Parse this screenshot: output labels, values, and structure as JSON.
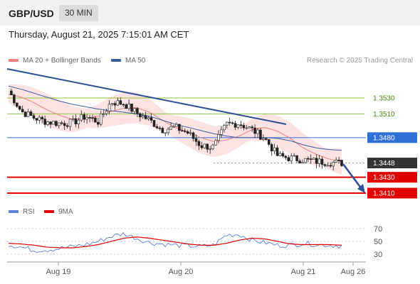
{
  "header": {
    "pair": "GBP/USD",
    "timeframe": "30 MIN"
  },
  "datetime": "Thursday, August 21, 2025 7:15:01 AM CET",
  "legend": {
    "ma20": "MA 20 + Bollinger Bands",
    "ma50": "MA 50",
    "copyright": "Research © 2025 Trading Central"
  },
  "rsi_legend": {
    "rsi": "RSI",
    "ma9": "9MA"
  },
  "colors": {
    "ma20": "#f08080",
    "ma50": "#3a5fa0",
    "bands": "#fadada",
    "support": "#e00000",
    "resistance": "#2f6fd6",
    "levels": "#8cc63f",
    "current": "#333333",
    "trendline": "#2b4f96",
    "rsi": "#5b7fd8"
  },
  "chart_data": {
    "type": "line",
    "title": "GBP/USD",
    "price_levels": [
      {
        "label": "1.3530",
        "value": 1.353,
        "kind": "resistance-level",
        "line_color": "#8cc63f",
        "label_bg": "none",
        "label_color": "#4a8a10"
      },
      {
        "label": "1.3510",
        "value": 1.351,
        "kind": "resistance-level",
        "line_color": "#8cc63f",
        "label_bg": "none",
        "label_color": "#4a8a10"
      },
      {
        "label": "1.3480",
        "value": 1.348,
        "kind": "pivot",
        "line_color": "#2f6fd6",
        "label_bg": "#2f6fd6",
        "label_color": "#ffffff"
      },
      {
        "label": "1.3448",
        "value": 1.3448,
        "kind": "current",
        "line_color": "#999999",
        "label_bg": "#333333",
        "label_color": "#ffffff"
      },
      {
        "label": "1.3430",
        "value": 1.343,
        "kind": "support",
        "line_color": "#e00000",
        "label_bg": "#e00000",
        "label_color": "#ffffff"
      },
      {
        "label": "1.3410",
        "value": 1.341,
        "kind": "support",
        "line_color": "#e00000",
        "label_bg": "#e00000",
        "label_color": "#ffffff"
      }
    ],
    "x_ticks": [
      "Aug 19",
      "Aug 20",
      "Aug 21",
      "Aug 26"
    ],
    "rsi_ticks": [
      70,
      50,
      30
    ],
    "ma20": [
      1.3535,
      1.3531,
      1.3524,
      1.3515,
      1.3508,
      1.3503,
      1.3504,
      1.3507,
      1.3513,
      1.3517,
      1.3518,
      1.3512,
      1.3502,
      1.3493,
      1.3487,
      1.348,
      1.3475,
      1.3477,
      1.3482,
      1.349,
      1.3493,
      1.3488,
      1.3479,
      1.3467,
      1.3459,
      1.3453,
      1.345
    ],
    "ma50": [
      1.3545,
      1.3541,
      1.3536,
      1.3531,
      1.3526,
      1.3522,
      1.3519,
      1.3516,
      1.3514,
      1.3512,
      1.351,
      1.3507,
      1.3502,
      1.3497,
      1.3493,
      1.3489,
      1.3485,
      1.3482,
      1.348,
      1.348,
      1.348,
      1.3479,
      1.3476,
      1.3471,
      1.3467,
      1.3465,
      1.3464
    ],
    "close": [
      1.3539,
      1.3513,
      1.3505,
      1.35,
      1.3498,
      1.3499,
      1.3507,
      1.35,
      1.3525,
      1.3523,
      1.3511,
      1.3502,
      1.349,
      1.3493,
      1.3486,
      1.347,
      1.3468,
      1.3497,
      1.3498,
      1.349,
      1.3479,
      1.3457,
      1.3454,
      1.3452,
      1.345,
      1.3449,
      1.3448
    ],
    "rsi": [
      45,
      41,
      36,
      37,
      39,
      42,
      45,
      50,
      58,
      62,
      55,
      48,
      46,
      44,
      43,
      42,
      44,
      60,
      61,
      52,
      48,
      44,
      44,
      47,
      45,
      44,
      43
    ],
    "rsi_ma": [
      47,
      46,
      44,
      41,
      40,
      40,
      42,
      45,
      50,
      55,
      57,
      55,
      52,
      49,
      46,
      44,
      44,
      47,
      52,
      55,
      54,
      50,
      46,
      45,
      45,
      45,
      44
    ]
  }
}
